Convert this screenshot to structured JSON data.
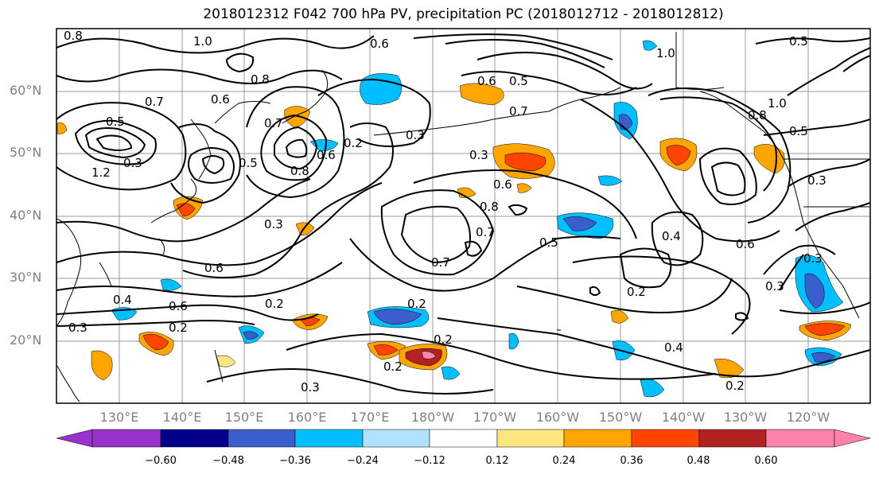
{
  "title": "2018012312 F042 700 hPa PV, precipitation PC (2018012712 - 2018012812)",
  "lat_labels": [
    "60°N",
    "50°N",
    "40°N",
    "30°N",
    "20°N"
  ],
  "lon_labels": [
    "130°E",
    "140°E",
    "150°E",
    "160°E",
    "170°E",
    "180°W",
    "170°W",
    "160°W",
    "150°W",
    "140°W",
    "130°W",
    "120°W"
  ],
  "contour_labels": [
    "0.8",
    "1.0",
    "0.6",
    "0.5",
    "0.6",
    "0.7",
    "0.8",
    "0.6",
    "0.7",
    "0.5",
    "0.3",
    "1.2",
    "0.5",
    "0.7",
    "0.6",
    "0.8",
    "0.2",
    "0.3",
    "0.3",
    "0.6",
    "0.8",
    "0.7",
    "0.5",
    "0.7",
    "0.4",
    "0.6",
    "0.3",
    "0.3",
    "0.6",
    "0.2",
    "0.2",
    "0.2",
    "0.2",
    "0.4",
    "0.6",
    "0.2",
    "0.3",
    "0.2",
    "0.3",
    "0.4",
    "0.2",
    "0.3",
    "0.5",
    "1.0",
    "1.0",
    "0.8",
    "0.5",
    "0.3"
  ],
  "colorbar": {
    "ticks": [
      "−0.60",
      "−0.48",
      "−0.36",
      "−0.24",
      "−0.12",
      "0.12",
      "0.24",
      "0.36",
      "0.48",
      "0.60"
    ],
    "colors": [
      "#9932cc",
      "#00008b",
      "#3a5fcd",
      "#00bfff",
      "#b0e2ff",
      "#ffffff",
      "#ffe680",
      "#ffa500",
      "#ff4500",
      "#b22222",
      "#ff82ab"
    ]
  },
  "colors": {
    "grid": "#999999",
    "contour": "#000000",
    "coast": "#000000",
    "label": "#808080"
  }
}
